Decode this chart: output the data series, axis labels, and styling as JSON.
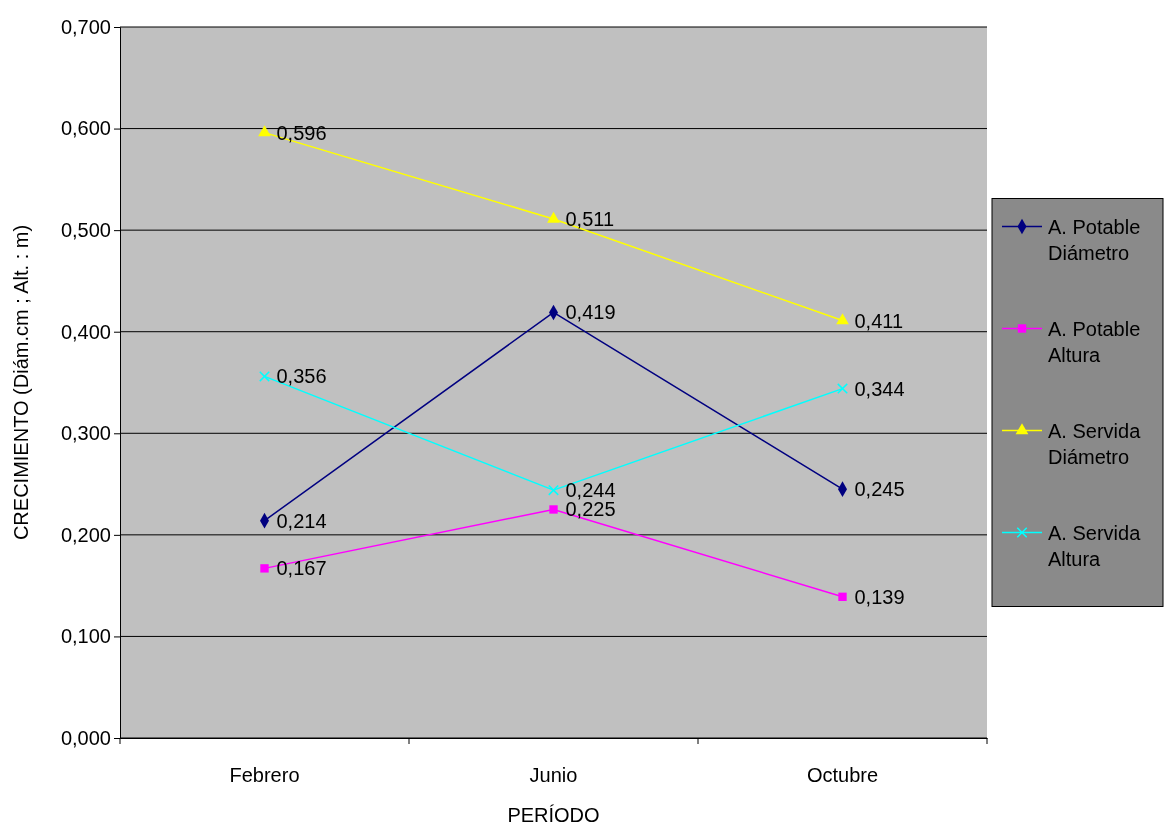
{
  "chart_data": {
    "type": "line",
    "xlabel": "PERÍODO",
    "ylabel": "CRECIMIENTO (Diám.cm ; Alt. : m)",
    "categories": [
      "Febrero",
      "Junio",
      "Octubre"
    ],
    "series": [
      {
        "name": "A. Potable Diámetro",
        "color": "#000080",
        "marker": "diamond",
        "values": [
          0.214,
          0.419,
          0.245
        ],
        "value_labels": [
          "0,214",
          "0,419",
          "0,245"
        ]
      },
      {
        "name": "A. Potable Altura",
        "color": "#ff00ff",
        "marker": "square",
        "values": [
          0.167,
          0.225,
          0.139
        ],
        "value_labels": [
          "0,167",
          "0,225",
          "0,139"
        ]
      },
      {
        "name": "A. Servida Diámetro",
        "color": "#ffff00",
        "marker": "triangle",
        "values": [
          0.596,
          0.511,
          0.411
        ],
        "value_labels": [
          "0,596",
          "0,511",
          "0,411"
        ]
      },
      {
        "name": "A. Servida Altura",
        "color": "#00ffff",
        "marker": "cross",
        "values": [
          0.356,
          0.244,
          0.344
        ],
        "value_labels": [
          "0,356",
          "0,244",
          "0,344"
        ]
      }
    ],
    "ylim": [
      0,
      0.7
    ],
    "yticks": [
      {
        "value": 0,
        "label": "0,000"
      },
      {
        "value": 0.1,
        "label": "0,100"
      },
      {
        "value": 0.2,
        "label": "0,200"
      },
      {
        "value": 0.3,
        "label": "0,300"
      },
      {
        "value": 0.4,
        "label": "0,400"
      },
      {
        "value": 0.5,
        "label": "0,500"
      },
      {
        "value": 0.6,
        "label": "0,600"
      },
      {
        "value": 0.7,
        "label": "0,700"
      }
    ],
    "grid": "y",
    "legend": "right"
  }
}
